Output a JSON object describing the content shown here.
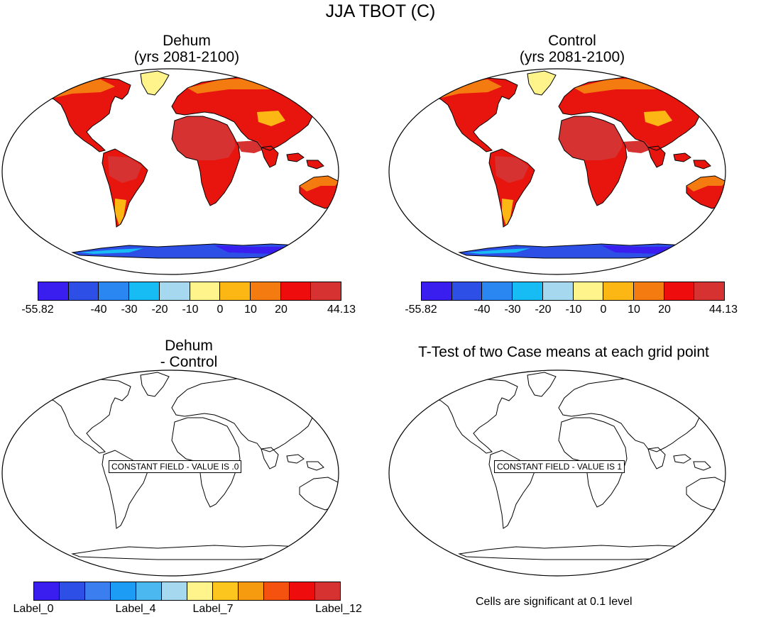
{
  "main_title": "JJA TBOT (C)",
  "panels": {
    "top_left": {
      "title_line1": "Dehum",
      "title_line2": "(yrs 2081-2100)"
    },
    "top_right": {
      "title_line1": "Control",
      "title_line2": "(yrs 2081-2100)"
    },
    "bottom_left": {
      "title_line1": "Dehum",
      "title_line2": "- Control",
      "constant_label": "CONSTANT FIELD - VALUE IS .0"
    },
    "bottom_right": {
      "title_line1": "T-Test of two Case means at each grid point",
      "constant_label": "CONSTANT FIELD - VALUE IS 1"
    }
  },
  "colorbar_top": {
    "colors": [
      "#3a1ef0",
      "#2d4fe6",
      "#2a86f0",
      "#18bcf5",
      "#a6d8ef",
      "#fff48c",
      "#fdb714",
      "#f47b10",
      "#ee0c0c",
      "#d63232"
    ],
    "labels": [
      "-55.82",
      "-40",
      "-30",
      "-20",
      "-10",
      "0",
      "10",
      "20",
      "44.13"
    ]
  },
  "colorbar_bottom": {
    "colors": [
      "#3a1ef0",
      "#2d4fe6",
      "#3a7ef0",
      "#1c9cf5",
      "#4cb8f0",
      "#a6d8ef",
      "#fff48c",
      "#fdc61e",
      "#f69a10",
      "#f4520e",
      "#ee0c0c",
      "#d63232"
    ],
    "labels": [
      "Label_0",
      "Label_4",
      "Label_7",
      "Label_12"
    ]
  },
  "footnote": "Cells are significant at 0.1 level"
}
